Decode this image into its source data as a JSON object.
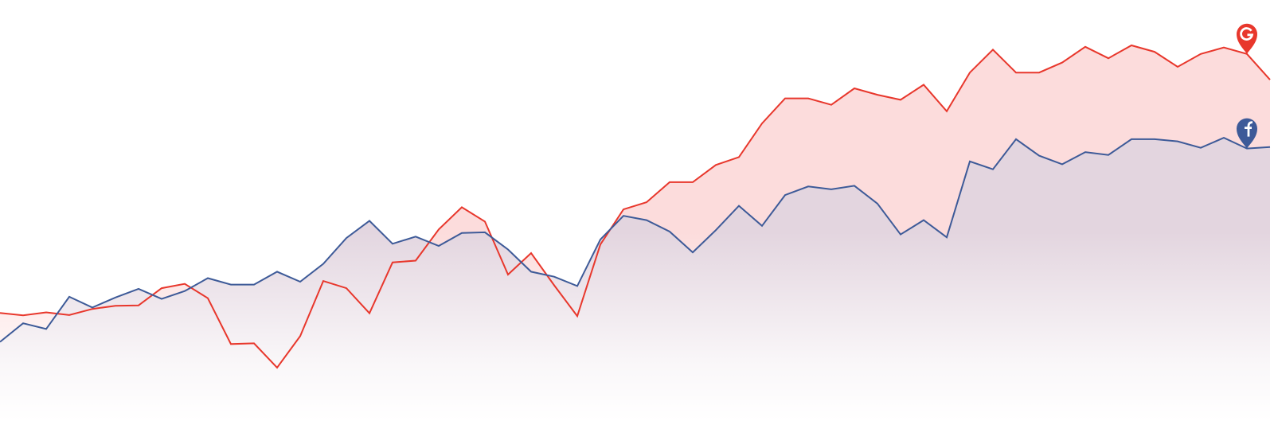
{
  "chart_data": {
    "type": "area",
    "x": [
      0,
      1,
      2,
      3,
      4,
      5,
      6,
      7,
      8,
      9,
      10,
      11,
      12,
      13,
      14,
      15,
      16,
      17,
      18,
      19,
      20,
      21,
      22,
      23,
      24,
      25,
      26,
      27,
      28,
      29,
      30,
      31,
      32,
      33,
      34,
      35,
      36,
      37,
      38,
      39,
      40,
      41,
      42,
      43,
      44,
      45,
      46,
      47,
      48,
      49,
      50,
      51,
      52,
      53,
      54,
      55
    ],
    "series": [
      {
        "icon": "google-pin-icon",
        "color": "#e8372c",
        "fill": "#fcdcdc",
        "values": [
          38.2,
          36.5,
          38.6,
          36.7,
          41.0,
          43.2,
          43.5,
          55.5,
          58.5,
          48.5,
          16.5,
          17.0,
          0.0,
          22.0,
          60.5,
          55.5,
          38.0,
          73.5,
          74.7,
          96.5,
          112.0,
          102.0,
          65.0,
          80.0,
          57.5,
          36.0,
          86.0,
          110.5,
          115.5,
          129.5,
          129.5,
          141.5,
          147.0,
          170.5,
          188.0,
          188.0,
          183.5,
          195.0,
          190.5,
          187.0,
          197.5,
          179.0,
          206.0,
          222.0,
          206.0,
          206.0,
          213.0,
          224.0,
          216.0,
          225.0,
          220.5,
          210.0,
          219.0,
          223.5,
          219.0,
          201.0
        ]
      },
      {
        "icon": "facebook-pin-icon",
        "color": "#3d5a98",
        "fill": "#e2d4de",
        "values": [
          18.0,
          31.0,
          27.0,
          49.5,
          42.0,
          49.0,
          55.0,
          48.0,
          53.5,
          62.5,
          58.0,
          58.0,
          67.0,
          60.0,
          72.5,
          90.5,
          102.5,
          86.5,
          91.5,
          85.0,
          94.0,
          94.5,
          82.5,
          67.0,
          63.5,
          57.0,
          89.5,
          106.0,
          103.0,
          95.0,
          80.5,
          96.0,
          113.0,
          99.0,
          120.5,
          126.5,
          124.5,
          127.0,
          114.5,
          93.0,
          103.0,
          91.0,
          144.0,
          138.5,
          159.5,
          148.0,
          142.0,
          150.5,
          148.5,
          159.5,
          159.5,
          158.0,
          153.5,
          160.5,
          153.0,
          154.0
        ]
      }
    ],
    "ylim": [
      0,
      250
    ],
    "grid": false,
    "legend": "none"
  }
}
